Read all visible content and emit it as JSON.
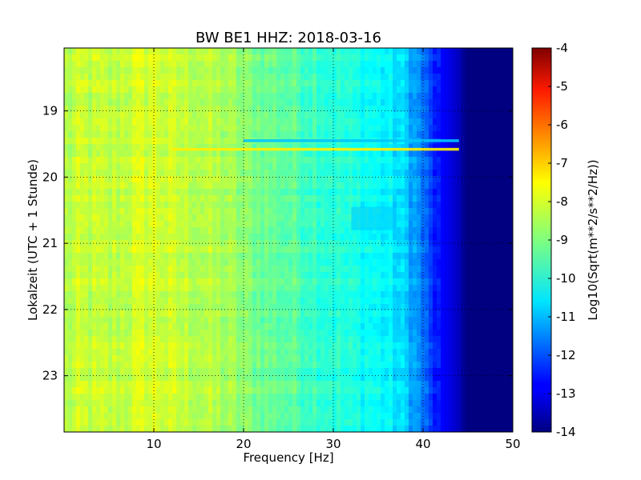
{
  "chart_data": {
    "type": "heatmap",
    "title": "BW BE1 HHZ: 2018-03-16",
    "xlabel": "Frequency [Hz]",
    "ylabel": "Lokalzeit (UTC + 1 Stunde)",
    "xlim": [
      0,
      50
    ],
    "ylim": [
      18.05,
      23.85
    ],
    "y_inverted": true,
    "x_ticks": [
      "10",
      "20",
      "30",
      "40",
      "50"
    ],
    "x_tick_values": [
      10,
      20,
      30,
      40,
      50
    ],
    "y_ticks": [
      "19",
      "20",
      "21",
      "22",
      "23"
    ],
    "y_tick_values": [
      19,
      20,
      21,
      22,
      23
    ],
    "grid": true,
    "colormap": "jet",
    "colorbar": {
      "label": "Log10(Sqrt(m**2/s**2/Hz))",
      "range": [
        -14,
        -4
      ],
      "ticks": [
        "-4",
        "-5",
        "-6",
        "-7",
        "-8",
        "-9",
        "-10",
        "-11",
        "-12",
        "-13",
        "-14"
      ],
      "tick_values": [
        -4,
        -5,
        -6,
        -7,
        -8,
        -9,
        -10,
        -11,
        -12,
        -13,
        -14
      ]
    },
    "spectrum_profile": {
      "frequency_hz": [
        0,
        2,
        5,
        8,
        10,
        12,
        15,
        18,
        20,
        22,
        25,
        28,
        30,
        32,
        34,
        36,
        38,
        40,
        41,
        42,
        43,
        44,
        44.5,
        45,
        50
      ],
      "value_log10": [
        -8.5,
        -8.3,
        -8.4,
        -8.2,
        -8.1,
        -8.3,
        -8.4,
        -8.6,
        -8.9,
        -9.1,
        -9.3,
        -9.6,
        -9.8,
        -10.0,
        -10.1,
        -10.3,
        -10.7,
        -11.6,
        -12.3,
        -12.7,
        -13.0,
        -13.4,
        -13.8,
        -14.0,
        -14.0
      ]
    },
    "events": [
      {
        "time": 19.58,
        "freq_range": [
          12,
          44
        ],
        "value_log10": -7.6
      },
      {
        "time": 19.45,
        "freq_range": [
          20,
          44
        ],
        "value_log10": -10.8
      },
      {
        "time": 20.45,
        "freq_range": [
          32,
          37
        ],
        "value_log10": -10.8
      }
    ]
  }
}
